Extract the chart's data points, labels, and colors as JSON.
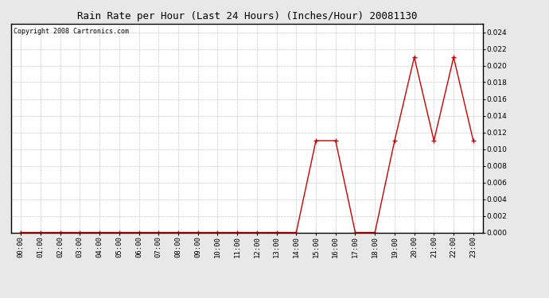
{
  "title": "Rain Rate per Hour (Last 24 Hours) (Inches/Hour) 20081130",
  "copyright_text": "Copyright 2008 Cartronics.com",
  "hours": [
    "00:00",
    "01:00",
    "02:00",
    "03:00",
    "04:00",
    "05:00",
    "06:00",
    "07:00",
    "08:00",
    "09:00",
    "10:00",
    "11:00",
    "12:00",
    "13:00",
    "14:00",
    "15:00",
    "16:00",
    "17:00",
    "18:00",
    "19:00",
    "20:00",
    "21:00",
    "22:00",
    "23:00"
  ],
  "values": [
    0.0,
    0.0,
    0.0,
    0.0,
    0.0,
    0.0,
    0.0,
    0.0,
    0.0,
    0.0,
    0.0,
    0.0,
    0.0,
    0.0,
    0.0,
    0.011,
    0.011,
    0.0,
    0.0,
    0.011,
    0.021,
    0.011,
    0.021,
    0.011
  ],
  "line_color": "#cc0000",
  "marker": "+",
  "marker_size": 4,
  "bg_color": "#e8e8e8",
  "plot_bg_color": "#ffffff",
  "grid_color": "#c8c8c8",
  "ylim": [
    0.0,
    0.025
  ],
  "ytick_step": 0.002,
  "title_fontsize": 9,
  "copyright_fontsize": 6,
  "tick_fontsize": 6.5,
  "line_width": 1.0,
  "marker_edge_width": 1.0
}
